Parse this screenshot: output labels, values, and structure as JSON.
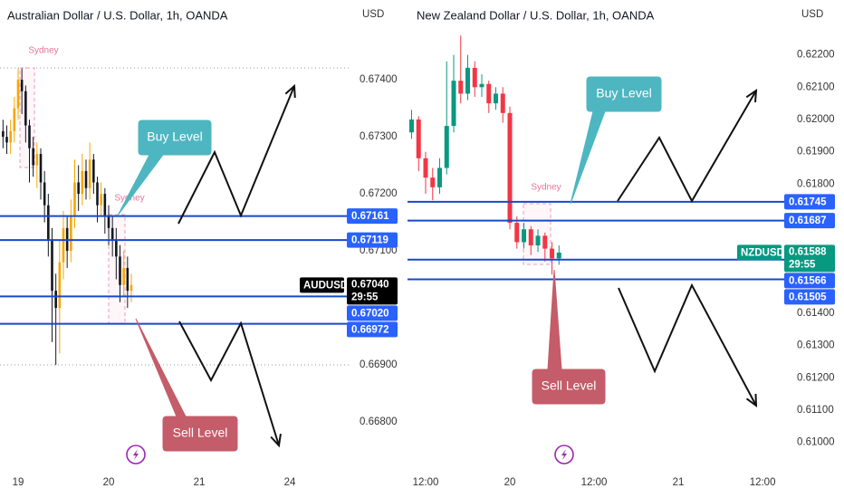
{
  "chart_data": [
    {
      "type": "candlestick",
      "title": "Australian Dollar / U.S. Dollar, 1h, OANDA",
      "y_unit": "USD",
      "xlim": [
        -4.8,
        87.6
      ],
      "ylim": [
        0.6673,
        0.6754
      ],
      "xticks": [
        {
          "value": 0,
          "label": "19"
        },
        {
          "value": 24,
          "label": "20"
        },
        {
          "value": 48,
          "label": "21"
        },
        {
          "value": 72,
          "label": "24"
        }
      ],
      "yticks": [
        {
          "value": 0.674,
          "label": "0.67400"
        },
        {
          "value": 0.673,
          "label": "0.67300"
        },
        {
          "value": 0.672,
          "label": "0.67200"
        },
        {
          "value": 0.671,
          "label": "0.67100"
        },
        {
          "value": 0.669,
          "label": "0.66900"
        },
        {
          "value": 0.668,
          "label": "0.66800"
        }
      ],
      "x": [
        -4,
        -3,
        -2,
        -1,
        0,
        1,
        2,
        3,
        4,
        5,
        6,
        7,
        8,
        9,
        10,
        11,
        12,
        13,
        14,
        15,
        16,
        17,
        18,
        19,
        20,
        21,
        22,
        23,
        24,
        25,
        26,
        27,
        28,
        29,
        30
      ],
      "open": [
        0.6731,
        0.673,
        0.6729,
        0.6731,
        0.6735,
        0.674,
        0.6738,
        0.6732,
        0.6728,
        0.6725,
        0.6727,
        0.6722,
        0.6718,
        0.6712,
        0.6703,
        0.67,
        0.6708,
        0.6714,
        0.671,
        0.6716,
        0.6722,
        0.672,
        0.6724,
        0.6721,
        0.6726,
        0.6722,
        0.6718,
        0.672,
        0.6716,
        0.6714,
        0.6712,
        0.6709,
        0.6704,
        0.6707,
        0.6703
      ],
      "high": [
        0.6733,
        0.6732,
        0.6733,
        0.6737,
        0.6742,
        0.6742,
        0.6739,
        0.6733,
        0.673,
        0.6729,
        0.6728,
        0.6724,
        0.672,
        0.6714,
        0.6706,
        0.6712,
        0.6717,
        0.6716,
        0.6719,
        0.6726,
        0.6725,
        0.6727,
        0.6726,
        0.6729,
        0.6727,
        0.6723,
        0.6722,
        0.6721,
        0.6718,
        0.6716,
        0.6714,
        0.6711,
        0.671,
        0.6709,
        0.6706
      ],
      "low": [
        0.6728,
        0.6727,
        0.6727,
        0.6729,
        0.6733,
        0.6734,
        0.6729,
        0.6722,
        0.6723,
        0.6721,
        0.6719,
        0.6715,
        0.6709,
        0.6694,
        0.669,
        0.6692,
        0.6705,
        0.6707,
        0.6708,
        0.6714,
        0.6717,
        0.6718,
        0.6719,
        0.6719,
        0.672,
        0.6715,
        0.6716,
        0.6713,
        0.6711,
        0.6709,
        0.6705,
        0.6701,
        0.6702,
        0.67,
        0.6701
      ],
      "close": [
        0.673,
        0.6729,
        0.6731,
        0.6735,
        0.674,
        0.6738,
        0.6732,
        0.6728,
        0.6725,
        0.6727,
        0.6722,
        0.6718,
        0.6712,
        0.6703,
        0.67,
        0.6708,
        0.6714,
        0.671,
        0.6716,
        0.6722,
        0.672,
        0.6724,
        0.6721,
        0.6726,
        0.6722,
        0.6718,
        0.672,
        0.6716,
        0.6714,
        0.6712,
        0.6709,
        0.6704,
        0.6707,
        0.6703,
        0.6704
      ],
      "up_color": "#f7a600",
      "down_color": "#131722",
      "levels": [
        0.67161,
        0.67119,
        {
          "value": 0.6702,
          "label": "0.67020"
        },
        0.66972
      ],
      "level_color": "#1848cc",
      "current": {
        "symbol": "AUDUSD",
        "price": {
          "value": 0.6704,
          "label": "0.67040"
        },
        "countdown": "29:55",
        "color": "#000000"
      },
      "sessions": [
        "Sydney",
        "Sydney"
      ],
      "buy_label": "Buy Level",
      "sell_label": "Sell Level",
      "buy_color": "#4db6c1",
      "sell_color": "#c45c69"
    },
    {
      "type": "candlestick",
      "title": "New Zealand Dollar / U.S. Dollar, 1h, OANDA",
      "y_unit": "USD",
      "xlim": [
        9.42,
        63.6
      ],
      "ylim": [
        0.6094,
        0.6237
      ],
      "xticks": [
        {
          "value": 12,
          "label": "12:00"
        },
        {
          "value": 24,
          "label": "20"
        },
        {
          "value": 36,
          "label": "12:00"
        },
        {
          "value": 48,
          "label": "21"
        },
        {
          "value": 60,
          "label": "12:00"
        }
      ],
      "yticks": [
        {
          "value": 0.622,
          "label": "0.62200"
        },
        {
          "value": 0.621,
          "label": "0.62100"
        },
        {
          "value": 0.62,
          "label": "0.62000"
        },
        {
          "value": 0.619,
          "label": "0.61900"
        },
        {
          "value": 0.618,
          "label": "0.61800"
        },
        {
          "value": 0.614,
          "label": "0.61400"
        },
        {
          "value": 0.613,
          "label": "0.61300"
        },
        {
          "value": 0.612,
          "label": "0.61200"
        },
        {
          "value": 0.611,
          "label": "0.61100"
        },
        {
          "value": 0.61,
          "label": "0.61000"
        }
      ],
      "x": [
        10,
        11,
        12,
        13,
        14,
        15,
        16,
        17,
        18,
        19,
        20,
        21,
        22,
        23,
        24,
        25,
        26,
        27,
        28,
        29,
        30,
        31
      ],
      "open": [
        0.6196,
        0.62,
        0.6188,
        0.6182,
        0.6179,
        0.6185,
        0.6198,
        0.6212,
        0.6208,
        0.6216,
        0.621,
        0.6211,
        0.6205,
        0.6208,
        0.6202,
        0.6168,
        0.6162,
        0.6166,
        0.6161,
        0.6164,
        0.616,
        0.6157
      ],
      "high": [
        0.6203,
        0.6201,
        0.619,
        0.6185,
        0.6188,
        0.6218,
        0.622,
        0.6226,
        0.622,
        0.6218,
        0.6214,
        0.6212,
        0.621,
        0.621,
        0.6204,
        0.617,
        0.6168,
        0.6167,
        0.6166,
        0.6165,
        0.6162,
        0.6161
      ],
      "low": [
        0.6194,
        0.6184,
        0.6177,
        0.6175,
        0.6177,
        0.6183,
        0.6196,
        0.6205,
        0.6206,
        0.6207,
        0.6207,
        0.6202,
        0.6203,
        0.6199,
        0.6166,
        0.616,
        0.616,
        0.6158,
        0.6159,
        0.6156,
        0.6152,
        0.6155
      ],
      "close": [
        0.62,
        0.6188,
        0.6182,
        0.6179,
        0.6185,
        0.6198,
        0.6212,
        0.6208,
        0.6216,
        0.621,
        0.6211,
        0.6205,
        0.6208,
        0.6202,
        0.6168,
        0.6162,
        0.6166,
        0.6161,
        0.6164,
        0.616,
        0.6157,
        0.61588
      ],
      "up_color": "#089981",
      "down_color": "#f23645",
      "levels": [
        0.61745,
        0.61687,
        0.61566,
        0.61505
      ],
      "level_color": "#1848cc",
      "current": {
        "symbol": "NZDUSD",
        "price": 0.61588,
        "countdown": "29:55",
        "color": "#089981"
      },
      "sessions": [
        "Sydney"
      ],
      "buy_label": "Buy Level",
      "sell_label": "Sell Level",
      "buy_color": "#4db6c1",
      "sell_color": "#c45c69"
    }
  ]
}
